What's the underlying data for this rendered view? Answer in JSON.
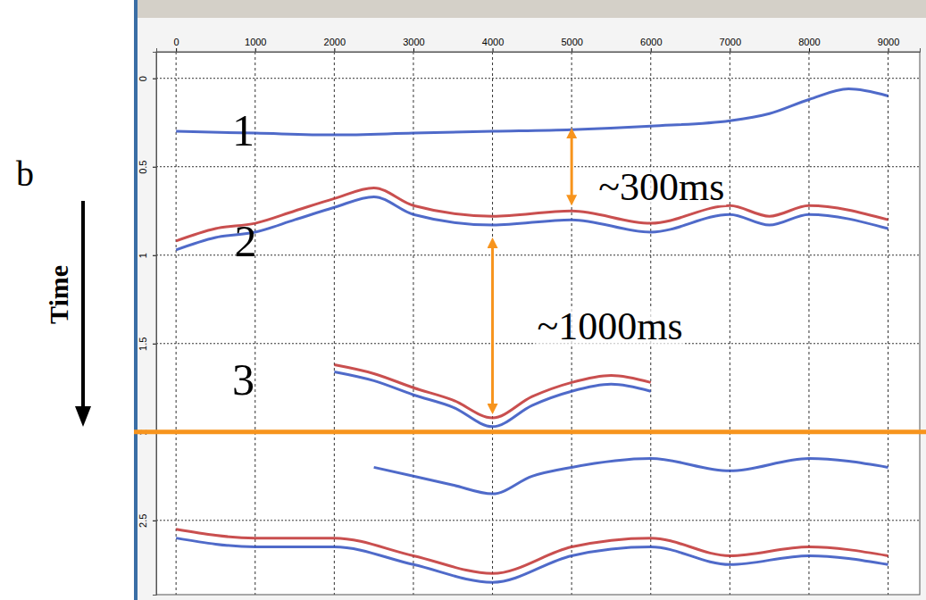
{
  "chart_data": {
    "type": "seismic",
    "panel_label": "b",
    "ylabel": "Time",
    "xlim": [
      -250,
      9400
    ],
    "xticks": [
      0,
      1000,
      2000,
      3000,
      4000,
      5000,
      6000,
      7000,
      8000,
      9000
    ],
    "ylim": [
      -0.15,
      2.92
    ],
    "yticks": [
      0,
      0.5,
      1,
      1.5,
      2,
      2.5
    ],
    "grid": true,
    "hline": 2,
    "zones": [
      {
        "text": "1",
        "x": 850,
        "y": 0.29
      },
      {
        "text": "2",
        "x": 880,
        "y": 0.92
      },
      {
        "text": "3",
        "x": 850,
        "y": 1.7
      }
    ],
    "annotations": [
      {
        "text": "~300ms",
        "x": 5000,
        "y": [
          0.28,
          0.72
        ]
      },
      {
        "text": "~1000ms",
        "x": 4000,
        "y": [
          0.9,
          1.9
        ]
      }
    ],
    "series": [
      {
        "type": "line",
        "color": "#3050c0",
        "x": [
          0,
          1000,
          2000,
          3000,
          4000,
          5000,
          6000,
          7000,
          7500,
          8000,
          8500,
          9000
        ],
        "values": [
          0.3,
          0.31,
          0.32,
          0.31,
          0.3,
          0.29,
          0.27,
          0.24,
          0.2,
          0.12,
          0.06,
          0.1
        ]
      },
      {
        "type": "line",
        "color": "#c03030",
        "x": [
          0,
          500,
          1000,
          1500,
          2000,
          2500,
          3000,
          4000,
          5000,
          6000,
          7000,
          7500,
          8000,
          9000
        ],
        "values": [
          0.92,
          0.85,
          0.82,
          0.75,
          0.68,
          0.62,
          0.72,
          0.78,
          0.75,
          0.82,
          0.72,
          0.78,
          0.72,
          0.8
        ]
      },
      {
        "type": "line",
        "color": "#3050c0",
        "x": [
          0,
          500,
          1000,
          1500,
          2000,
          2500,
          3000,
          4000,
          5000,
          6000,
          7000,
          7500,
          8000,
          9000
        ],
        "values": [
          0.97,
          0.9,
          0.87,
          0.8,
          0.73,
          0.67,
          0.77,
          0.83,
          0.8,
          0.87,
          0.77,
          0.83,
          0.77,
          0.85
        ]
      },
      {
        "type": "line",
        "color": "#c03030",
        "x": [
          2000,
          2500,
          3000,
          3500,
          4000,
          4500,
          5000,
          5500,
          6000
        ],
        "values": [
          1.62,
          1.67,
          1.75,
          1.82,
          1.92,
          1.8,
          1.72,
          1.68,
          1.72
        ]
      },
      {
        "type": "line",
        "color": "#3050c0",
        "x": [
          2000,
          2500,
          3000,
          3500,
          4000,
          4500,
          5000,
          5500,
          6000
        ],
        "values": [
          1.66,
          1.71,
          1.79,
          1.86,
          1.97,
          1.85,
          1.77,
          1.73,
          1.77
        ]
      },
      {
        "type": "line",
        "color": "#3050c0",
        "x": [
          2500,
          3000,
          3500,
          4000,
          4500,
          5000,
          6000,
          7000,
          8000,
          9000
        ],
        "values": [
          2.2,
          2.25,
          2.3,
          2.35,
          2.25,
          2.2,
          2.15,
          2.22,
          2.15,
          2.2
        ]
      },
      {
        "type": "line",
        "color": "#c03030",
        "x": [
          0,
          1000,
          2000,
          3000,
          4000,
          5000,
          6000,
          7000,
          8000,
          9000
        ],
        "values": [
          2.55,
          2.6,
          2.6,
          2.7,
          2.8,
          2.65,
          2.6,
          2.7,
          2.65,
          2.7
        ]
      },
      {
        "type": "line",
        "color": "#3050c0",
        "x": [
          0,
          1000,
          2000,
          3000,
          4000,
          5000,
          6000,
          7000,
          8000,
          9000
        ],
        "values": [
          2.6,
          2.65,
          2.65,
          2.75,
          2.85,
          2.7,
          2.65,
          2.75,
          2.7,
          2.75
        ]
      }
    ]
  }
}
